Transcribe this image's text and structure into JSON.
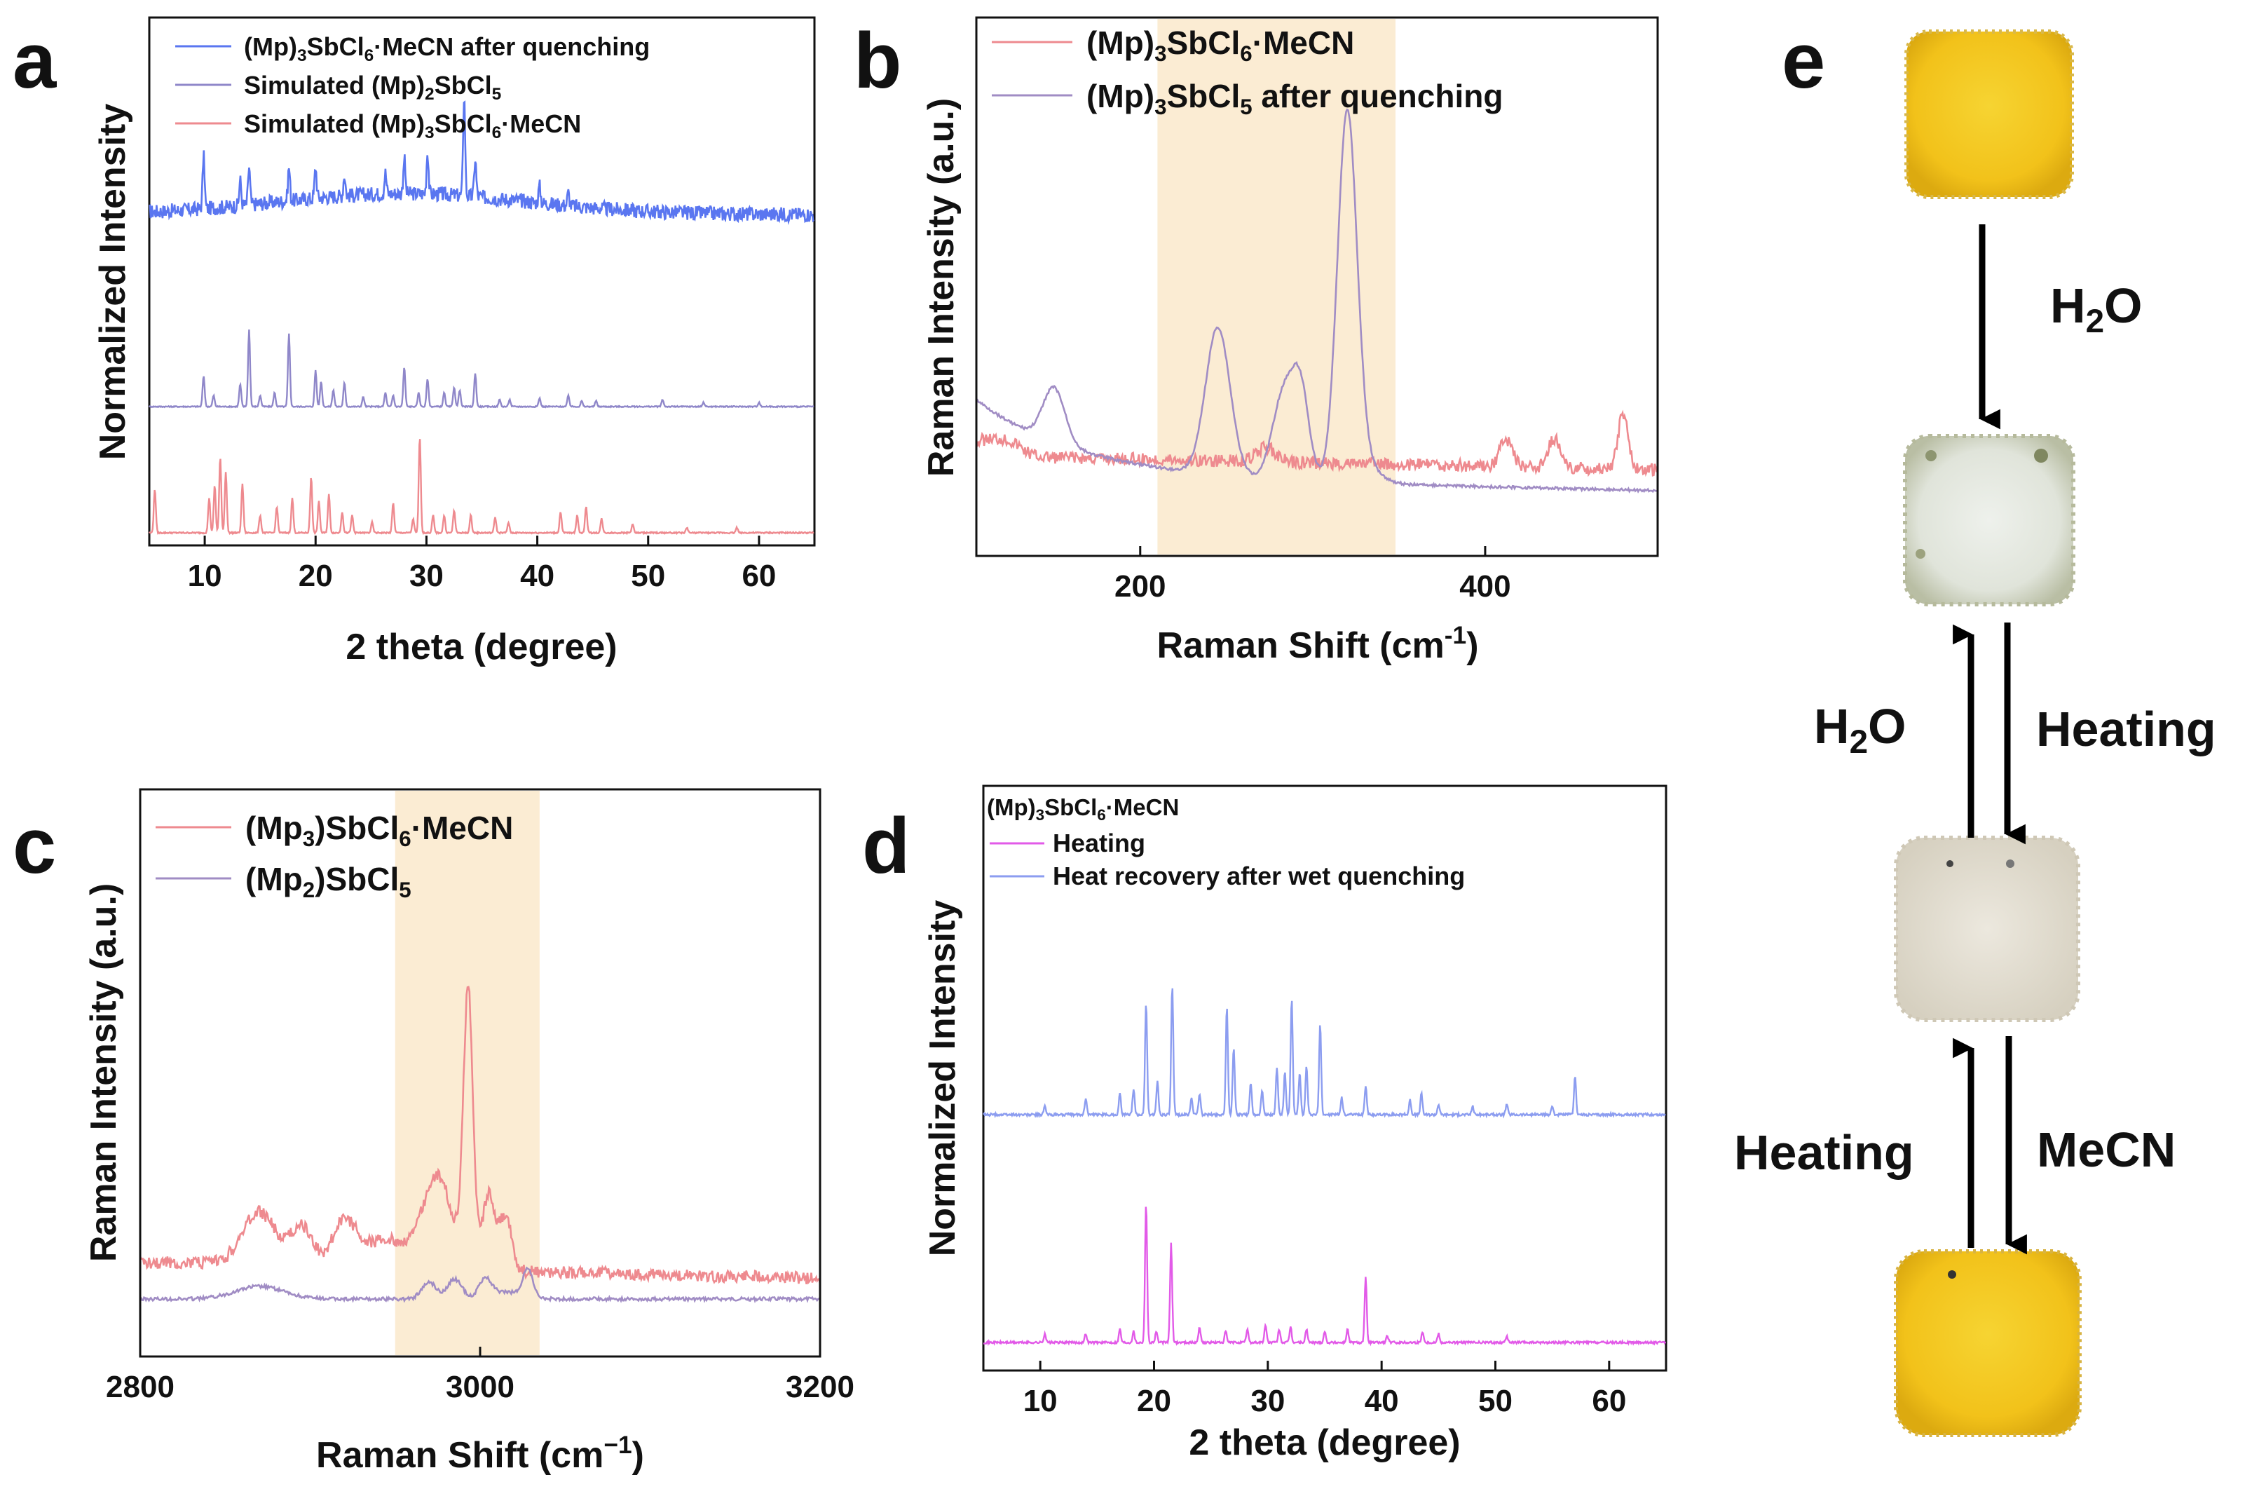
{
  "panels": {
    "a": "a",
    "b": "b",
    "c": "c",
    "d": "d",
    "e": "e"
  },
  "colors": {
    "blue": "#5a76f0",
    "purple": "#8f87c9",
    "red": "#ee8a8f",
    "raman_red": "#ee8a8f",
    "raman_purple": "#a08cc4",
    "magenta": "#e25ae8",
    "lightblue": "#8c9df0",
    "highlight": "#fbecd3",
    "yellow": "#f2c71c",
    "white_sample": "#e9ece4",
    "beige_sample": "#e7e2d6"
  },
  "chart_data": [
    {
      "id": "a",
      "type": "line",
      "title": "",
      "xlabel": "2 theta (degree)",
      "ylabel": "Normalized Intensity",
      "xlim": [
        5,
        65
      ],
      "xticks": [
        10,
        20,
        30,
        40,
        50,
        60
      ],
      "grid": false,
      "legend_position": "top-left",
      "series": [
        {
          "name": "(Mp)3SbCl6·MeCN after quenching",
          "color": "#5a76f0",
          "baseline": 0.36,
          "noise": 0.035,
          "hump": 0.1,
          "peaks": [
            [
              9.9,
              0.25
            ],
            [
              13.2,
              0.12
            ],
            [
              14.0,
              0.18
            ],
            [
              17.6,
              0.16
            ],
            [
              20.0,
              0.15
            ],
            [
              22.6,
              0.1
            ],
            [
              26.3,
              0.1
            ],
            [
              28.0,
              0.17
            ],
            [
              30.1,
              0.2
            ],
            [
              33.4,
              0.48
            ],
            [
              34.4,
              0.18
            ],
            [
              40.2,
              0.08
            ],
            [
              42.8,
              0.06
            ]
          ]
        },
        {
          "name": "Simulated (Mp)2SbCl5",
          "color": "#8f87c9",
          "baseline": 0.0,
          "noise": 0.004,
          "hump": 0,
          "peaks": [
            [
              9.9,
              0.22
            ],
            [
              10.8,
              0.08
            ],
            [
              13.2,
              0.16
            ],
            [
              14.0,
              0.55
            ],
            [
              15.0,
              0.08
            ],
            [
              16.3,
              0.1
            ],
            [
              17.6,
              0.52
            ],
            [
              20.0,
              0.26
            ],
            [
              20.5,
              0.18
            ],
            [
              21.6,
              0.12
            ],
            [
              22.6,
              0.17
            ],
            [
              24.3,
              0.07
            ],
            [
              26.3,
              0.1
            ],
            [
              27.0,
              0.08
            ],
            [
              28.0,
              0.28
            ],
            [
              29.3,
              0.1
            ],
            [
              30.1,
              0.2
            ],
            [
              31.6,
              0.1
            ],
            [
              32.5,
              0.14
            ],
            [
              33.0,
              0.12
            ],
            [
              34.4,
              0.24
            ],
            [
              36.6,
              0.05
            ],
            [
              37.5,
              0.05
            ],
            [
              40.2,
              0.06
            ],
            [
              42.8,
              0.08
            ],
            [
              44.0,
              0.04
            ],
            [
              45.3,
              0.04
            ],
            [
              51.3,
              0.05
            ],
            [
              55.0,
              0.03
            ],
            [
              60.0,
              0.03
            ]
          ]
        },
        {
          "name": "Simulated (Mp)3SbCl6·MeCN",
          "color": "#ee8a8f",
          "baseline": 0.0,
          "noise": 0.004,
          "hump": 0,
          "peaks": [
            [
              5.5,
              0.25
            ],
            [
              10.4,
              0.2
            ],
            [
              10.9,
              0.27
            ],
            [
              11.4,
              0.43
            ],
            [
              11.9,
              0.35
            ],
            [
              13.4,
              0.28
            ],
            [
              15.0,
              0.1
            ],
            [
              16.5,
              0.15
            ],
            [
              17.9,
              0.2
            ],
            [
              19.6,
              0.32
            ],
            [
              20.3,
              0.18
            ],
            [
              21.2,
              0.22
            ],
            [
              22.4,
              0.12
            ],
            [
              23.3,
              0.1
            ],
            [
              25.1,
              0.06
            ],
            [
              27.0,
              0.17
            ],
            [
              28.8,
              0.08
            ],
            [
              29.4,
              0.55
            ],
            [
              30.6,
              0.1
            ],
            [
              31.6,
              0.1
            ],
            [
              32.5,
              0.13
            ],
            [
              34.0,
              0.1
            ],
            [
              36.2,
              0.09
            ],
            [
              37.4,
              0.06
            ],
            [
              42.1,
              0.12
            ],
            [
              43.6,
              0.1
            ],
            [
              44.4,
              0.15
            ],
            [
              45.8,
              0.08
            ],
            [
              48.6,
              0.05
            ],
            [
              53.5,
              0.03
            ],
            [
              58.0,
              0.03
            ]
          ]
        }
      ]
    },
    {
      "id": "b",
      "type": "line",
      "title": "",
      "xlabel": "Raman Shift (cm-1)",
      "ylabel": "Raman Intensity (a.u.)",
      "xlim": [
        105,
        500
      ],
      "xticks": [
        200,
        400
      ],
      "highlight_range": [
        210,
        348
      ],
      "grid": false,
      "legend_position": "top-left",
      "series": [
        {
          "name": "(Mp)3SbCl6·MeCN",
          "color": "#ee8a8f"
        },
        {
          "name": "(Mp)3SbCl5 after quenching",
          "color": "#a08cc4"
        }
      ]
    },
    {
      "id": "c",
      "type": "line",
      "title": "",
      "xlabel": "Raman Shift (cm−1)",
      "ylabel": "Raman Intensity (a.u.)",
      "xlim": [
        2800,
        3200
      ],
      "xticks": [
        2800,
        3000,
        3200
      ],
      "highlight_range": [
        2950,
        3035
      ],
      "grid": false,
      "legend_position": "top-left",
      "series": [
        {
          "name": "(Mp3)SbCl6·MeCN",
          "color": "#ee8a8f"
        },
        {
          "name": "(Mp2)SbCl5",
          "color": "#a08cc4"
        }
      ]
    },
    {
      "id": "d",
      "type": "line",
      "title": "(Mp)3SbCl6·MeCN",
      "xlabel": "2 theta (degree)",
      "ylabel": "Normalized Intensity",
      "xlim": [
        5,
        65
      ],
      "xticks": [
        10,
        20,
        30,
        40,
        50,
        60
      ],
      "grid": false,
      "legend_position": "top-left",
      "series": [
        {
          "name": "Heating",
          "color": "#e25ae8",
          "baseline": 0.0,
          "noise": 0.005,
          "peaks": [
            [
              10.4,
              0.04
            ],
            [
              14.0,
              0.04
            ],
            [
              17.0,
              0.06
            ],
            [
              18.2,
              0.05
            ],
            [
              19.3,
              0.62
            ],
            [
              20.2,
              0.05
            ],
            [
              21.5,
              0.44
            ],
            [
              24.0,
              0.07
            ],
            [
              26.3,
              0.05
            ],
            [
              28.2,
              0.06
            ],
            [
              29.8,
              0.08
            ],
            [
              31.0,
              0.06
            ],
            [
              32.0,
              0.07
            ],
            [
              33.4,
              0.06
            ],
            [
              35.0,
              0.05
            ],
            [
              37.0,
              0.06
            ],
            [
              38.6,
              0.29
            ],
            [
              40.5,
              0.03
            ],
            [
              43.6,
              0.05
            ],
            [
              45.0,
              0.04
            ],
            [
              51.0,
              0.03
            ]
          ]
        },
        {
          "name": "Heat recovery after wet quenching",
          "color": "#8c9df0",
          "baseline": 0.0,
          "noise": 0.006,
          "peaks": [
            [
              10.4,
              0.04
            ],
            [
              14.0,
              0.08
            ],
            [
              17.0,
              0.1
            ],
            [
              18.2,
              0.12
            ],
            [
              19.3,
              0.53
            ],
            [
              20.3,
              0.16
            ],
            [
              21.6,
              0.61
            ],
            [
              23.3,
              0.08
            ],
            [
              24.0,
              0.1
            ],
            [
              26.4,
              0.51
            ],
            [
              27.0,
              0.32
            ],
            [
              28.5,
              0.15
            ],
            [
              29.5,
              0.12
            ],
            [
              30.8,
              0.22
            ],
            [
              31.5,
              0.2
            ],
            [
              32.1,
              0.55
            ],
            [
              32.8,
              0.2
            ],
            [
              33.4,
              0.23
            ],
            [
              34.6,
              0.43
            ],
            [
              36.5,
              0.08
            ],
            [
              38.6,
              0.14
            ],
            [
              42.5,
              0.07
            ],
            [
              43.5,
              0.1
            ],
            [
              45.0,
              0.05
            ],
            [
              48.0,
              0.04
            ],
            [
              51.0,
              0.05
            ],
            [
              55.0,
              0.04
            ],
            [
              57.0,
              0.18
            ]
          ]
        }
      ]
    }
  ],
  "panel_e": {
    "arrow_down_1_label": "H2O",
    "arrow_up_1_label": "H2O",
    "arrow_down_2_label": "Heating",
    "arrow_up_2_label": "Heating",
    "arrow_down_3_label": "MeCN"
  }
}
